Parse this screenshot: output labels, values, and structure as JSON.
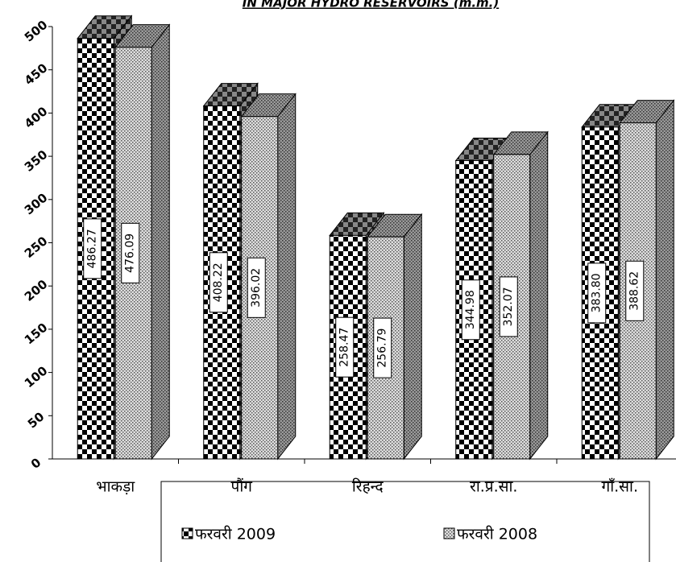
{
  "chart_data": {
    "type": "bar3d",
    "title": "IN MAJOR HYDRO RESERVOIRS (m.m.)",
    "categories": [
      "भाकड़ा",
      "पौंग",
      "रिहन्द",
      "रा.प्र.सा.",
      "गाँ.सा."
    ],
    "series": [
      {
        "name": "फरवरी 2009",
        "color": "#000000",
        "values": [
          486.27,
          408.22,
          258.47,
          344.98,
          383.8
        ],
        "value_labels": [
          "486.27",
          "408.22",
          "258.47",
          "344.98",
          "383.80"
        ]
      },
      {
        "name": "फरवरी 2008",
        "color": "#888888",
        "values": [
          476.09,
          396.02,
          256.79,
          352.07,
          388.62
        ],
        "value_labels": [
          "476.09",
          "396.02",
          "256.79",
          "352.07",
          "388.62"
        ]
      }
    ],
    "ylim": [
      0,
      500
    ],
    "yticks": [
      0,
      50,
      100,
      150,
      200,
      250,
      300,
      350,
      400,
      450,
      500
    ],
    "grid": false
  }
}
